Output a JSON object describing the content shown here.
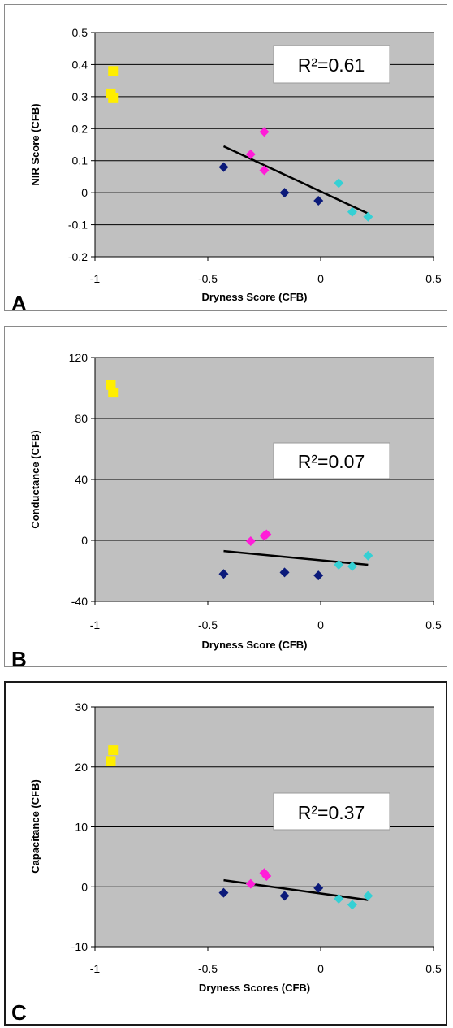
{
  "chart_data": [
    {
      "type": "scatter",
      "panel_label": "A",
      "xlabel": "Dryness Score (CFB)",
      "ylabel": "NIR Score (CFB)",
      "xlim": [
        -1,
        0.5
      ],
      "ylim": [
        -0.2,
        0.5
      ],
      "x_ticks": [
        -1,
        -0.5,
        0,
        0.5
      ],
      "x_tick_labels": [
        "-1",
        "-0.5",
        "0",
        "0.5"
      ],
      "y_ticks": [
        -0.2,
        -0.1,
        0,
        0.1,
        0.2,
        0.3,
        0.4,
        0.5
      ],
      "y_tick_labels": [
        "-0.2",
        "-0.1",
        "0",
        "0.1",
        "0.2",
        "0.3",
        "0.4",
        "0.5"
      ],
      "grid": "horizontal",
      "annotation": "R²=0.61",
      "series": [
        {
          "color": "#ffee00",
          "marker": "square",
          "points": [
            {
              "x": -0.92,
              "y": 0.38
            },
            {
              "x": -0.93,
              "y": 0.31
            },
            {
              "x": -0.92,
              "y": 0.295
            }
          ]
        },
        {
          "color": "#ff1dd8",
          "marker": "diamond",
          "points": [
            {
              "x": -0.31,
              "y": 0.12
            },
            {
              "x": -0.25,
              "y": 0.19
            },
            {
              "x": -0.25,
              "y": 0.07
            }
          ]
        },
        {
          "color": "#0b1a7a",
          "marker": "diamond",
          "points": [
            {
              "x": -0.43,
              "y": 0.08
            },
            {
              "x": -0.16,
              "y": 0.0
            },
            {
              "x": -0.01,
              "y": -0.025
            }
          ]
        },
        {
          "color": "#35d0d4",
          "marker": "diamond",
          "points": [
            {
              "x": 0.08,
              "y": 0.03
            },
            {
              "x": 0.14,
              "y": -0.06
            },
            {
              "x": 0.21,
              "y": -0.075
            }
          ]
        }
      ],
      "trendline": {
        "x": [
          -0.43,
          0.21
        ],
        "y": [
          0.145,
          -0.065
        ]
      }
    },
    {
      "type": "scatter",
      "panel_label": "B",
      "xlabel": "Dryness Score (CFB)",
      "ylabel": "Conductance (CFB)",
      "xlim": [
        -1,
        0.5
      ],
      "ylim": [
        -40,
        120
      ],
      "x_ticks": [
        -1,
        -0.5,
        0,
        0.5
      ],
      "x_tick_labels": [
        "-1",
        "-0.5",
        "0",
        "0.5"
      ],
      "y_ticks": [
        -40,
        0,
        40,
        80,
        120
      ],
      "y_tick_labels": [
        "-40",
        "0",
        "40",
        "80",
        "120"
      ],
      "grid": "horizontal",
      "annotation": "R²=0.07",
      "series": [
        {
          "color": "#ffee00",
          "marker": "square",
          "points": [
            {
              "x": -0.93,
              "y": 102
            },
            {
              "x": -0.92,
              "y": 97
            }
          ]
        },
        {
          "color": "#ff1dd8",
          "marker": "diamond",
          "points": [
            {
              "x": -0.31,
              "y": -0.5
            },
            {
              "x": -0.25,
              "y": 3
            },
            {
              "x": -0.24,
              "y": 4
            }
          ]
        },
        {
          "color": "#0b1a7a",
          "marker": "diamond",
          "points": [
            {
              "x": -0.43,
              "y": -22
            },
            {
              "x": -0.16,
              "y": -21
            },
            {
              "x": -0.01,
              "y": -23
            }
          ]
        },
        {
          "color": "#35d0d4",
          "marker": "diamond",
          "points": [
            {
              "x": 0.08,
              "y": -16
            },
            {
              "x": 0.14,
              "y": -17
            },
            {
              "x": 0.21,
              "y": -10
            }
          ]
        }
      ],
      "trendline": {
        "x": [
          -0.43,
          0.21
        ],
        "y": [
          -7,
          -16
        ]
      }
    },
    {
      "type": "scatter",
      "panel_label": "C",
      "xlabel": "Dryness Scores (CFB)",
      "ylabel": "Capacitance (CFB)",
      "xlim": [
        -1,
        0.5
      ],
      "ylim": [
        -10,
        30
      ],
      "x_ticks": [
        -1,
        -0.5,
        0,
        0.5
      ],
      "x_tick_labels": [
        "-1",
        "-0.5",
        "0",
        "0.5"
      ],
      "y_ticks": [
        -10,
        0,
        10,
        20,
        30
      ],
      "y_tick_labels": [
        "-10",
        "0",
        "10",
        "20",
        "30"
      ],
      "grid": "horizontal",
      "annotation": "R²=0.37",
      "series": [
        {
          "color": "#ffee00",
          "marker": "square",
          "points": [
            {
              "x": -0.92,
              "y": 22.8
            },
            {
              "x": -0.93,
              "y": 21
            }
          ]
        },
        {
          "color": "#ff1dd8",
          "marker": "diamond",
          "points": [
            {
              "x": -0.31,
              "y": 0.5
            },
            {
              "x": -0.25,
              "y": 2.3
            },
            {
              "x": -0.24,
              "y": 1.8
            }
          ]
        },
        {
          "color": "#0b1a7a",
          "marker": "diamond",
          "points": [
            {
              "x": -0.43,
              "y": -1
            },
            {
              "x": -0.16,
              "y": -1.5
            },
            {
              "x": -0.01,
              "y": -0.2
            }
          ]
        },
        {
          "color": "#35d0d4",
          "marker": "diamond",
          "points": [
            {
              "x": 0.08,
              "y": -2
            },
            {
              "x": 0.14,
              "y": -3
            },
            {
              "x": 0.21,
              "y": -1.5
            }
          ]
        }
      ],
      "trendline": {
        "x": [
          -0.43,
          0.21
        ],
        "y": [
          1.1,
          -2.2
        ]
      }
    }
  ]
}
